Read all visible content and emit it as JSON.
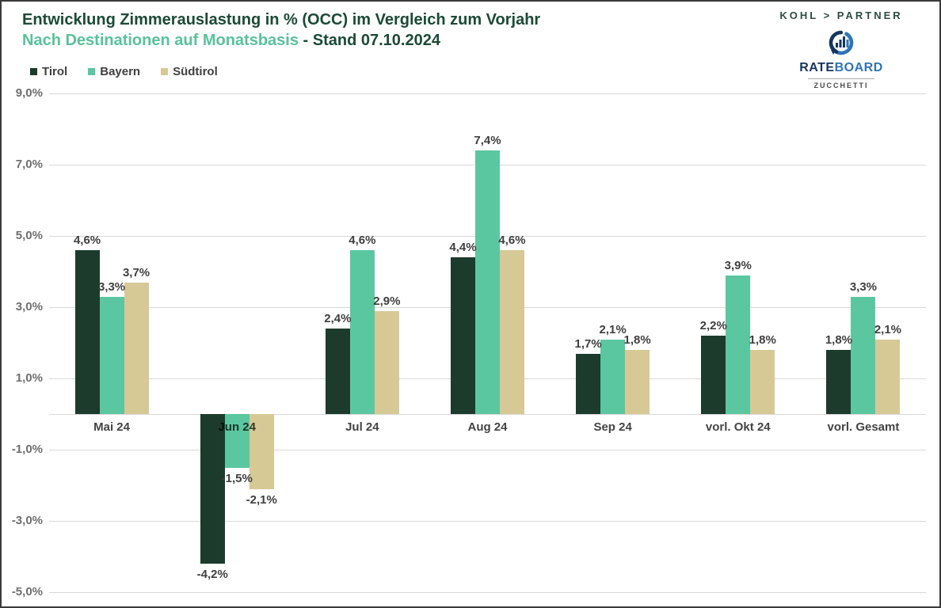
{
  "header": {
    "title": "Entwicklung Zimmerauslastung in % (OCC) im Vergleich zum Vorjahr",
    "subtitle_highlight": "Nach Destinationen auf Monatsbasis",
    "subtitle_rest": " - Stand 07.10.2024"
  },
  "branding": {
    "kohl_partner_label": "KOHL > PARTNER",
    "rateboard": {
      "rate": "RATE",
      "board": "BOARD",
      "subbrand": "ZUCCHETTI"
    },
    "logo_icon": "rateboard-chart-swirl-icon"
  },
  "colors": {
    "tirol": "#1c3b2c",
    "bayern": "#5bc7a0",
    "suedtirol": "#d6c996",
    "title_green": "#1b4a36",
    "subtitle_teal": "#57c39b",
    "gridline": "#d9d9d9",
    "frame_border": "#3a3a3a"
  },
  "legend": [
    {
      "label": "Tirol",
      "color": "#1c3b2c"
    },
    {
      "label": "Bayern",
      "color": "#5bc7a0"
    },
    {
      "label": "Südtirol",
      "color": "#d6c996"
    }
  ],
  "chart_data": {
    "type": "bar",
    "title": "Entwicklung Zimmerauslastung in % (OCC) im Vergleich zum Vorjahr",
    "subtitle": "Nach Destinationen auf Monatsbasis - Stand 07.10.2024",
    "categories": [
      "Mai 24",
      "Jun 24",
      "Jul 24",
      "Aug 24",
      "Sep 24",
      "vorl. Okt 24",
      "vorl. Gesamt"
    ],
    "series": [
      {
        "name": "Tirol",
        "color": "#1c3b2c",
        "values": [
          4.6,
          -4.2,
          2.4,
          4.4,
          1.7,
          2.2,
          1.8
        ],
        "labels": [
          "4,6%",
          "-4,2%",
          "2,4%",
          "4,4%",
          "1,7%",
          "2,2%",
          "1,8%"
        ]
      },
      {
        "name": "Bayern",
        "color": "#5bc7a0",
        "values": [
          3.3,
          -1.5,
          4.6,
          7.4,
          2.1,
          3.9,
          3.3
        ],
        "labels": [
          "3,3%",
          "-1,5%",
          "4,6%",
          "7,4%",
          "2,1%",
          "3,9%",
          "3,3%"
        ]
      },
      {
        "name": "Südtirol",
        "color": "#d6c996",
        "values": [
          3.7,
          -2.1,
          2.9,
          4.6,
          1.8,
          1.8,
          2.1
        ],
        "labels": [
          "3,7%",
          "-2,1%",
          "2,9%",
          "4,6%",
          "1,8%",
          "1,8%",
          "2,1%"
        ]
      }
    ],
    "yticks": [
      {
        "value": 9,
        "label": "9,0%"
      },
      {
        "value": 7,
        "label": "7,0%"
      },
      {
        "value": 5,
        "label": "5,0%"
      },
      {
        "value": 3,
        "label": "3,0%"
      },
      {
        "value": 1,
        "label": "1,0%"
      },
      {
        "value": 0,
        "label": ""
      },
      {
        "value": -1,
        "label": "-1,0%"
      },
      {
        "value": -3,
        "label": "-3,0%"
      },
      {
        "value": -5,
        "label": "-5,0%"
      }
    ],
    "ylim": [
      -5,
      9
    ],
    "ylabel": "",
    "xlabel": "",
    "grid": true,
    "legend_position": "top-left"
  }
}
